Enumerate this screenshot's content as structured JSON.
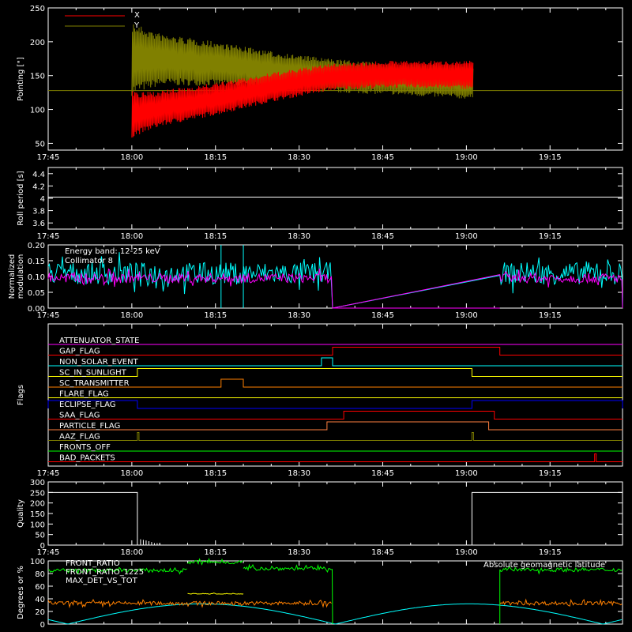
{
  "time_ticks": [
    "17:45",
    "18:00",
    "18:15",
    "18:30",
    "18:45",
    "19:00",
    "19:15"
  ],
  "chart_data": [
    {
      "type": "line",
      "ylabel": "Pointing [\"]",
      "ylim": [
        40,
        250
      ],
      "yticks": [
        50,
        100,
        150,
        200,
        250
      ],
      "legend_placement": "top-left",
      "reference_level": 128,
      "series": [
        {
          "name": "X",
          "color": "#ff0000",
          "start": "18:00",
          "end": "19:00",
          "upper": [
            [
              0,
              130
            ],
            [
              1,
              125
            ],
            [
              5,
              128
            ],
            [
              15,
              140
            ],
            [
              25,
              155
            ],
            [
              35,
              168
            ],
            [
              45,
              172
            ],
            [
              60,
              172
            ]
          ],
          "lower": [
            [
              0,
              58
            ],
            [
              1,
              62
            ],
            [
              5,
              75
            ],
            [
              15,
              92
            ],
            [
              25,
              112
            ],
            [
              35,
              128
            ],
            [
              45,
              132
            ],
            [
              60,
              130
            ]
          ]
        },
        {
          "name": "Y",
          "color": "#808000",
          "start": "18:00",
          "end": "19:00",
          "upper": [
            [
              0,
              230
            ],
            [
              1,
              225
            ],
            [
              5,
              212
            ],
            [
              15,
              200
            ],
            [
              25,
              185
            ],
            [
              35,
              175
            ],
            [
              45,
              168
            ],
            [
              60,
              165
            ]
          ],
          "lower": [
            [
              0,
              120
            ],
            [
              1,
              125
            ],
            [
              5,
              135
            ],
            [
              15,
              135
            ],
            [
              25,
              130
            ],
            [
              35,
              125
            ],
            [
              45,
              122
            ],
            [
              60,
              115
            ]
          ]
        }
      ]
    },
    {
      "type": "line",
      "ylabel": "Roll period [s]",
      "ylim": [
        3.5,
        4.5
      ],
      "yticks": [
        3.6,
        3.8,
        4.0,
        4.2,
        4.4
      ],
      "series": [
        {
          "color": "#ffffff",
          "value": 4.02
        }
      ]
    },
    {
      "type": "line",
      "ylabel": "Normalized modulation",
      "ylim": [
        0,
        0.2
      ],
      "yticks": [
        "0.00",
        "0.05",
        "0.10",
        "0.15",
        "0.20"
      ],
      "annotations": [
        "Energy band: 12-25 keV",
        "Collimator 8"
      ],
      "series": [
        {
          "name": "Collimator 8",
          "color": "#00ffff",
          "mean": 0.11,
          "spread": 0.07,
          "active": [
            [
              "17:45",
              "18:36"
            ],
            [
              "19:06",
              "19:28"
            ]
          ],
          "dips": [
            "18:16",
            "18:20"
          ]
        },
        {
          "color": "#ff00ff",
          "mean": 0.095,
          "spread": 0.03,
          "active": [
            [
              "17:45",
              "18:36"
            ],
            [
              "19:06",
              "19:28"
            ]
          ]
        }
      ]
    },
    {
      "type": "line",
      "ylabel": "Flags",
      "flags": [
        {
          "label": "ATTENUATOR_STATE",
          "color": "#ff00ff",
          "high": []
        },
        {
          "label": "GAP_FLAG",
          "color": "#ff0000",
          "high": [
            [
              "18:36",
              "19:06"
            ]
          ]
        },
        {
          "label": "NON_SOLAR_EVENT",
          "color": "#00ffff",
          "high": [
            [
              "18:34",
              "18:36"
            ]
          ]
        },
        {
          "label": "SC_IN_SUNLIGHT",
          "color": "#ffff00",
          "high": [
            [
              "18:01",
              "19:01"
            ]
          ]
        },
        {
          "label": "SC_TRANSMITTER",
          "color": "#ff8000",
          "high": [
            [
              "18:16",
              "18:20"
            ]
          ]
        },
        {
          "label": "FLARE_FLAG",
          "color": "#ffff00",
          "high": []
        },
        {
          "label": "ECLIPSE_FLAG",
          "color": "#0000ff",
          "high": [
            [
              "17:45",
              "18:01"
            ],
            [
              "19:01",
              "19:28"
            ]
          ]
        },
        {
          "label": "SAA_FLAG",
          "color": "#ff0000",
          "high": [
            [
              "18:38",
              "19:05"
            ]
          ]
        },
        {
          "label": "PARTICLE_FLAG",
          "color": "#ff8040",
          "high": [
            [
              "18:35",
              "19:04"
            ]
          ]
        },
        {
          "label": "AAZ_FLAG",
          "color": "#808000",
          "high": [
            [
              "18:01",
              "18:01"
            ],
            [
              "19:01",
              "19:01"
            ]
          ]
        },
        {
          "label": "FRONTS_OFF",
          "color": "#00ff00",
          "high": []
        },
        {
          "label": "BAD_PACKETS",
          "color": "#ff0000",
          "high": [
            [
              "19:23",
              "19:23"
            ]
          ]
        }
      ]
    },
    {
      "type": "line",
      "ylabel": "Quality",
      "ylim": [
        0,
        300
      ],
      "yticks": [
        0,
        50,
        100,
        150,
        200,
        250,
        300
      ],
      "series": [
        {
          "color": "#ffffff",
          "segments": [
            [
              "17:45",
              "18:01",
              250
            ],
            [
              "19:01",
              "19:28",
              250
            ]
          ]
        }
      ]
    },
    {
      "type": "line",
      "ylabel": "Degrees or %",
      "ylim": [
        0,
        100
      ],
      "yticks": [
        0,
        20,
        40,
        60,
        80,
        100
      ],
      "legend_placement": "top-left",
      "series": [
        {
          "name": "FRONT_RATIO",
          "color": "#ffff00",
          "segments": [
            [
              "18:10",
              "18:20",
              48
            ]
          ]
        },
        {
          "name": "FRONT_RATIO_1225",
          "color": "#00ff00",
          "segments": [
            [
              "17:45",
              "18:10",
              85
            ],
            [
              "18:10",
              "18:20",
              98
            ],
            [
              "18:20",
              "18:36",
              88
            ],
            [
              "19:06",
              "19:28",
              86
            ]
          ]
        },
        {
          "name": "MAX_DET_VS_TOT",
          "color": "#ff8000",
          "segments": [
            [
              "17:45",
              "18:36",
              33
            ],
            [
              "19:06",
              "19:28",
              33
            ]
          ]
        },
        {
          "name": "Absolute geomagnetic latitude",
          "color": "#00ffff",
          "legend_placement": "top-right"
        }
      ]
    }
  ]
}
